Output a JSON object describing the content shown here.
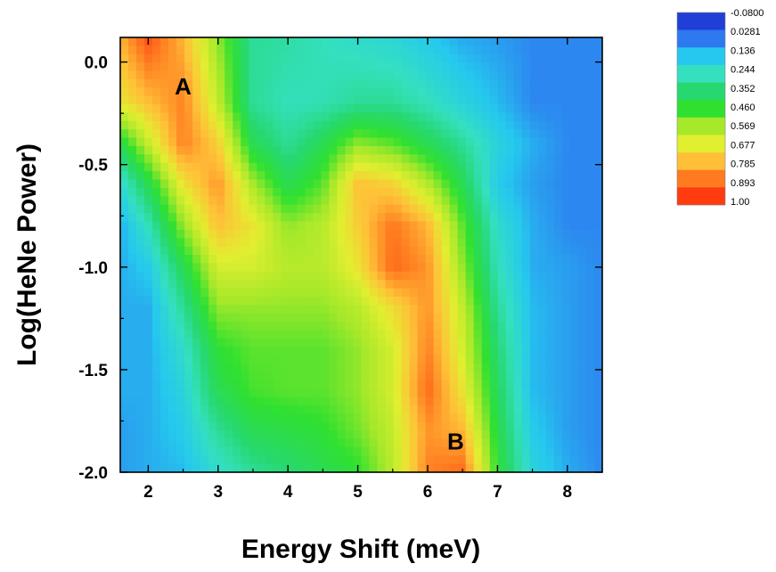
{
  "chart_data": {
    "type": "heatmap",
    "title": "",
    "xlabel": "Energy Shift (meV)",
    "ylabel": "Log(HeNe Power)",
    "xlim": [
      1.6,
      8.5
    ],
    "ylim": [
      -2.0,
      0.12
    ],
    "x_ticks": [
      "2",
      "3",
      "4",
      "5",
      "6",
      "7",
      "8"
    ],
    "y_ticks": [
      "0.0",
      "-0.5",
      "-1.0",
      "-1.5",
      "-2.0"
    ],
    "x_tick_values": [
      2,
      3,
      4,
      5,
      6,
      7,
      8
    ],
    "y_tick_values": [
      0.0,
      -0.5,
      -1.0,
      -1.5,
      -2.0
    ],
    "colorbar": {
      "labels": [
        "-0.0800",
        "0.0281",
        "0.136",
        "0.244",
        "0.352",
        "0.460",
        "0.569",
        "0.677",
        "0.785",
        "0.893",
        "1.00"
      ],
      "min": -0.08,
      "max": 1.0,
      "colors": [
        "#1f3fd6",
        "#2e78f0",
        "#25c8ee",
        "#34e0c0",
        "#27d870",
        "#30e030",
        "#a6e82a",
        "#e2ee30",
        "#ffc038",
        "#ff7a20",
        "#ff3c10"
      ]
    },
    "annotations": [
      {
        "text": "A",
        "x": 2.5,
        "y": -0.12
      },
      {
        "text": "B",
        "x": 6.4,
        "y": -1.85
      }
    ],
    "x": [
      1.6,
      2.0,
      2.5,
      3.0,
      3.5,
      4.0,
      4.5,
      5.0,
      5.5,
      6.0,
      6.5,
      7.0,
      7.5,
      8.0,
      8.5
    ],
    "y": [
      0.1,
      -0.2,
      -0.4,
      -0.6,
      -0.8,
      -1.0,
      -1.2,
      -1.4,
      -1.6,
      -1.8,
      -2.0
    ],
    "z": [
      [
        0.8,
        0.95,
        0.8,
        0.55,
        0.3,
        0.28,
        0.25,
        0.22,
        0.2,
        0.15,
        0.1,
        0.08,
        0.05,
        0.05,
        0.05
      ],
      [
        0.7,
        0.78,
        0.88,
        0.62,
        0.3,
        0.25,
        0.26,
        0.3,
        0.3,
        0.25,
        0.18,
        0.12,
        0.05,
        0.05,
        0.05
      ],
      [
        0.4,
        0.62,
        0.88,
        0.75,
        0.4,
        0.3,
        0.4,
        0.55,
        0.5,
        0.4,
        0.3,
        0.18,
        0.1,
        0.05,
        0.05
      ],
      [
        0.2,
        0.4,
        0.7,
        0.85,
        0.58,
        0.4,
        0.5,
        0.78,
        0.75,
        0.6,
        0.4,
        0.15,
        0.08,
        0.05,
        0.05
      ],
      [
        0.1,
        0.25,
        0.55,
        0.78,
        0.7,
        0.55,
        0.6,
        0.75,
        0.9,
        0.8,
        0.5,
        0.22,
        0.1,
        0.05,
        0.05
      ],
      [
        0.1,
        0.15,
        0.4,
        0.65,
        0.65,
        0.6,
        0.6,
        0.7,
        0.92,
        0.85,
        0.55,
        0.25,
        0.1,
        0.08,
        0.05
      ],
      [
        0.1,
        0.1,
        0.3,
        0.55,
        0.55,
        0.55,
        0.55,
        0.6,
        0.72,
        0.85,
        0.62,
        0.3,
        0.12,
        0.08,
        0.05
      ],
      [
        0.1,
        0.1,
        0.22,
        0.45,
        0.5,
        0.5,
        0.5,
        0.55,
        0.65,
        0.88,
        0.65,
        0.35,
        0.12,
        0.08,
        0.05
      ],
      [
        0.1,
        0.1,
        0.18,
        0.4,
        0.48,
        0.5,
        0.5,
        0.55,
        0.65,
        0.92,
        0.7,
        0.38,
        0.12,
        0.08,
        0.05
      ],
      [
        0.08,
        0.1,
        0.15,
        0.3,
        0.4,
        0.42,
        0.45,
        0.52,
        0.62,
        0.85,
        0.8,
        0.42,
        0.15,
        0.08,
        0.05
      ],
      [
        0.08,
        0.1,
        0.12,
        0.22,
        0.3,
        0.35,
        0.4,
        0.45,
        0.6,
        0.88,
        0.92,
        0.45,
        0.18,
        0.1,
        0.05
      ]
    ]
  }
}
